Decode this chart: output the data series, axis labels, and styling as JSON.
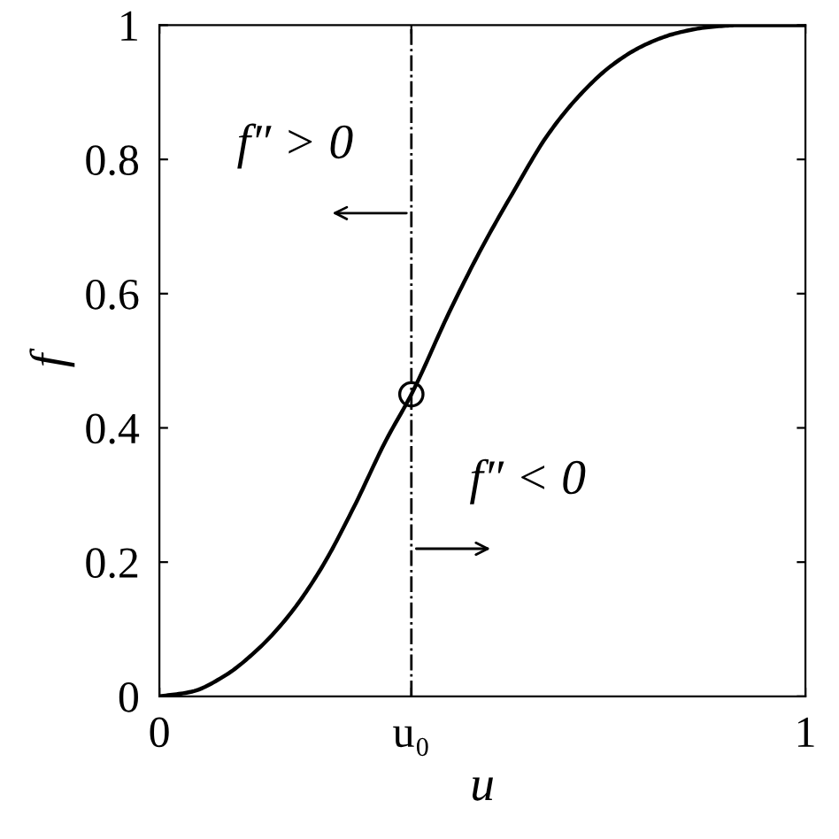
{
  "chart_data": {
    "type": "line",
    "xlabel": "u",
    "ylabel": "f",
    "xlim": [
      0,
      1
    ],
    "ylim": [
      0,
      1
    ],
    "xticks": [
      0,
      {
        "value": 0.39,
        "label": "u₀"
      },
      1
    ],
    "yticks": [
      0,
      0.2,
      0.4,
      0.6,
      0.8,
      1
    ],
    "grid": false,
    "legend": false,
    "series": [
      {
        "color": "#000000",
        "marker": "none",
        "line_style": "solid",
        "x": [
          0,
          0.05,
          0.1,
          0.15,
          0.2,
          0.25,
          0.3,
          0.35,
          0.39,
          0.45,
          0.5,
          0.55,
          0.6,
          0.65,
          0.7,
          0.75,
          0.8,
          0.85,
          0.9,
          1
        ],
        "values": [
          0,
          0.007,
          0.03,
          0.068,
          0.12,
          0.19,
          0.28,
          0.38,
          0.45,
          0.575,
          0.67,
          0.755,
          0.835,
          0.895,
          0.94,
          0.97,
          0.988,
          0.997,
          1,
          1
        ]
      },
      {
        "type": "scatter",
        "color": "#000000",
        "marker": "circle",
        "x": [
          0.39
        ],
        "values": [
          0.45
        ]
      }
    ],
    "ref_lines": [
      {
        "axis": "x",
        "value": 0.39,
        "color": "#000000",
        "line_style": "dashdot"
      }
    ],
    "annotations": [
      "f″ > 0",
      "f″ < 0"
    ]
  }
}
